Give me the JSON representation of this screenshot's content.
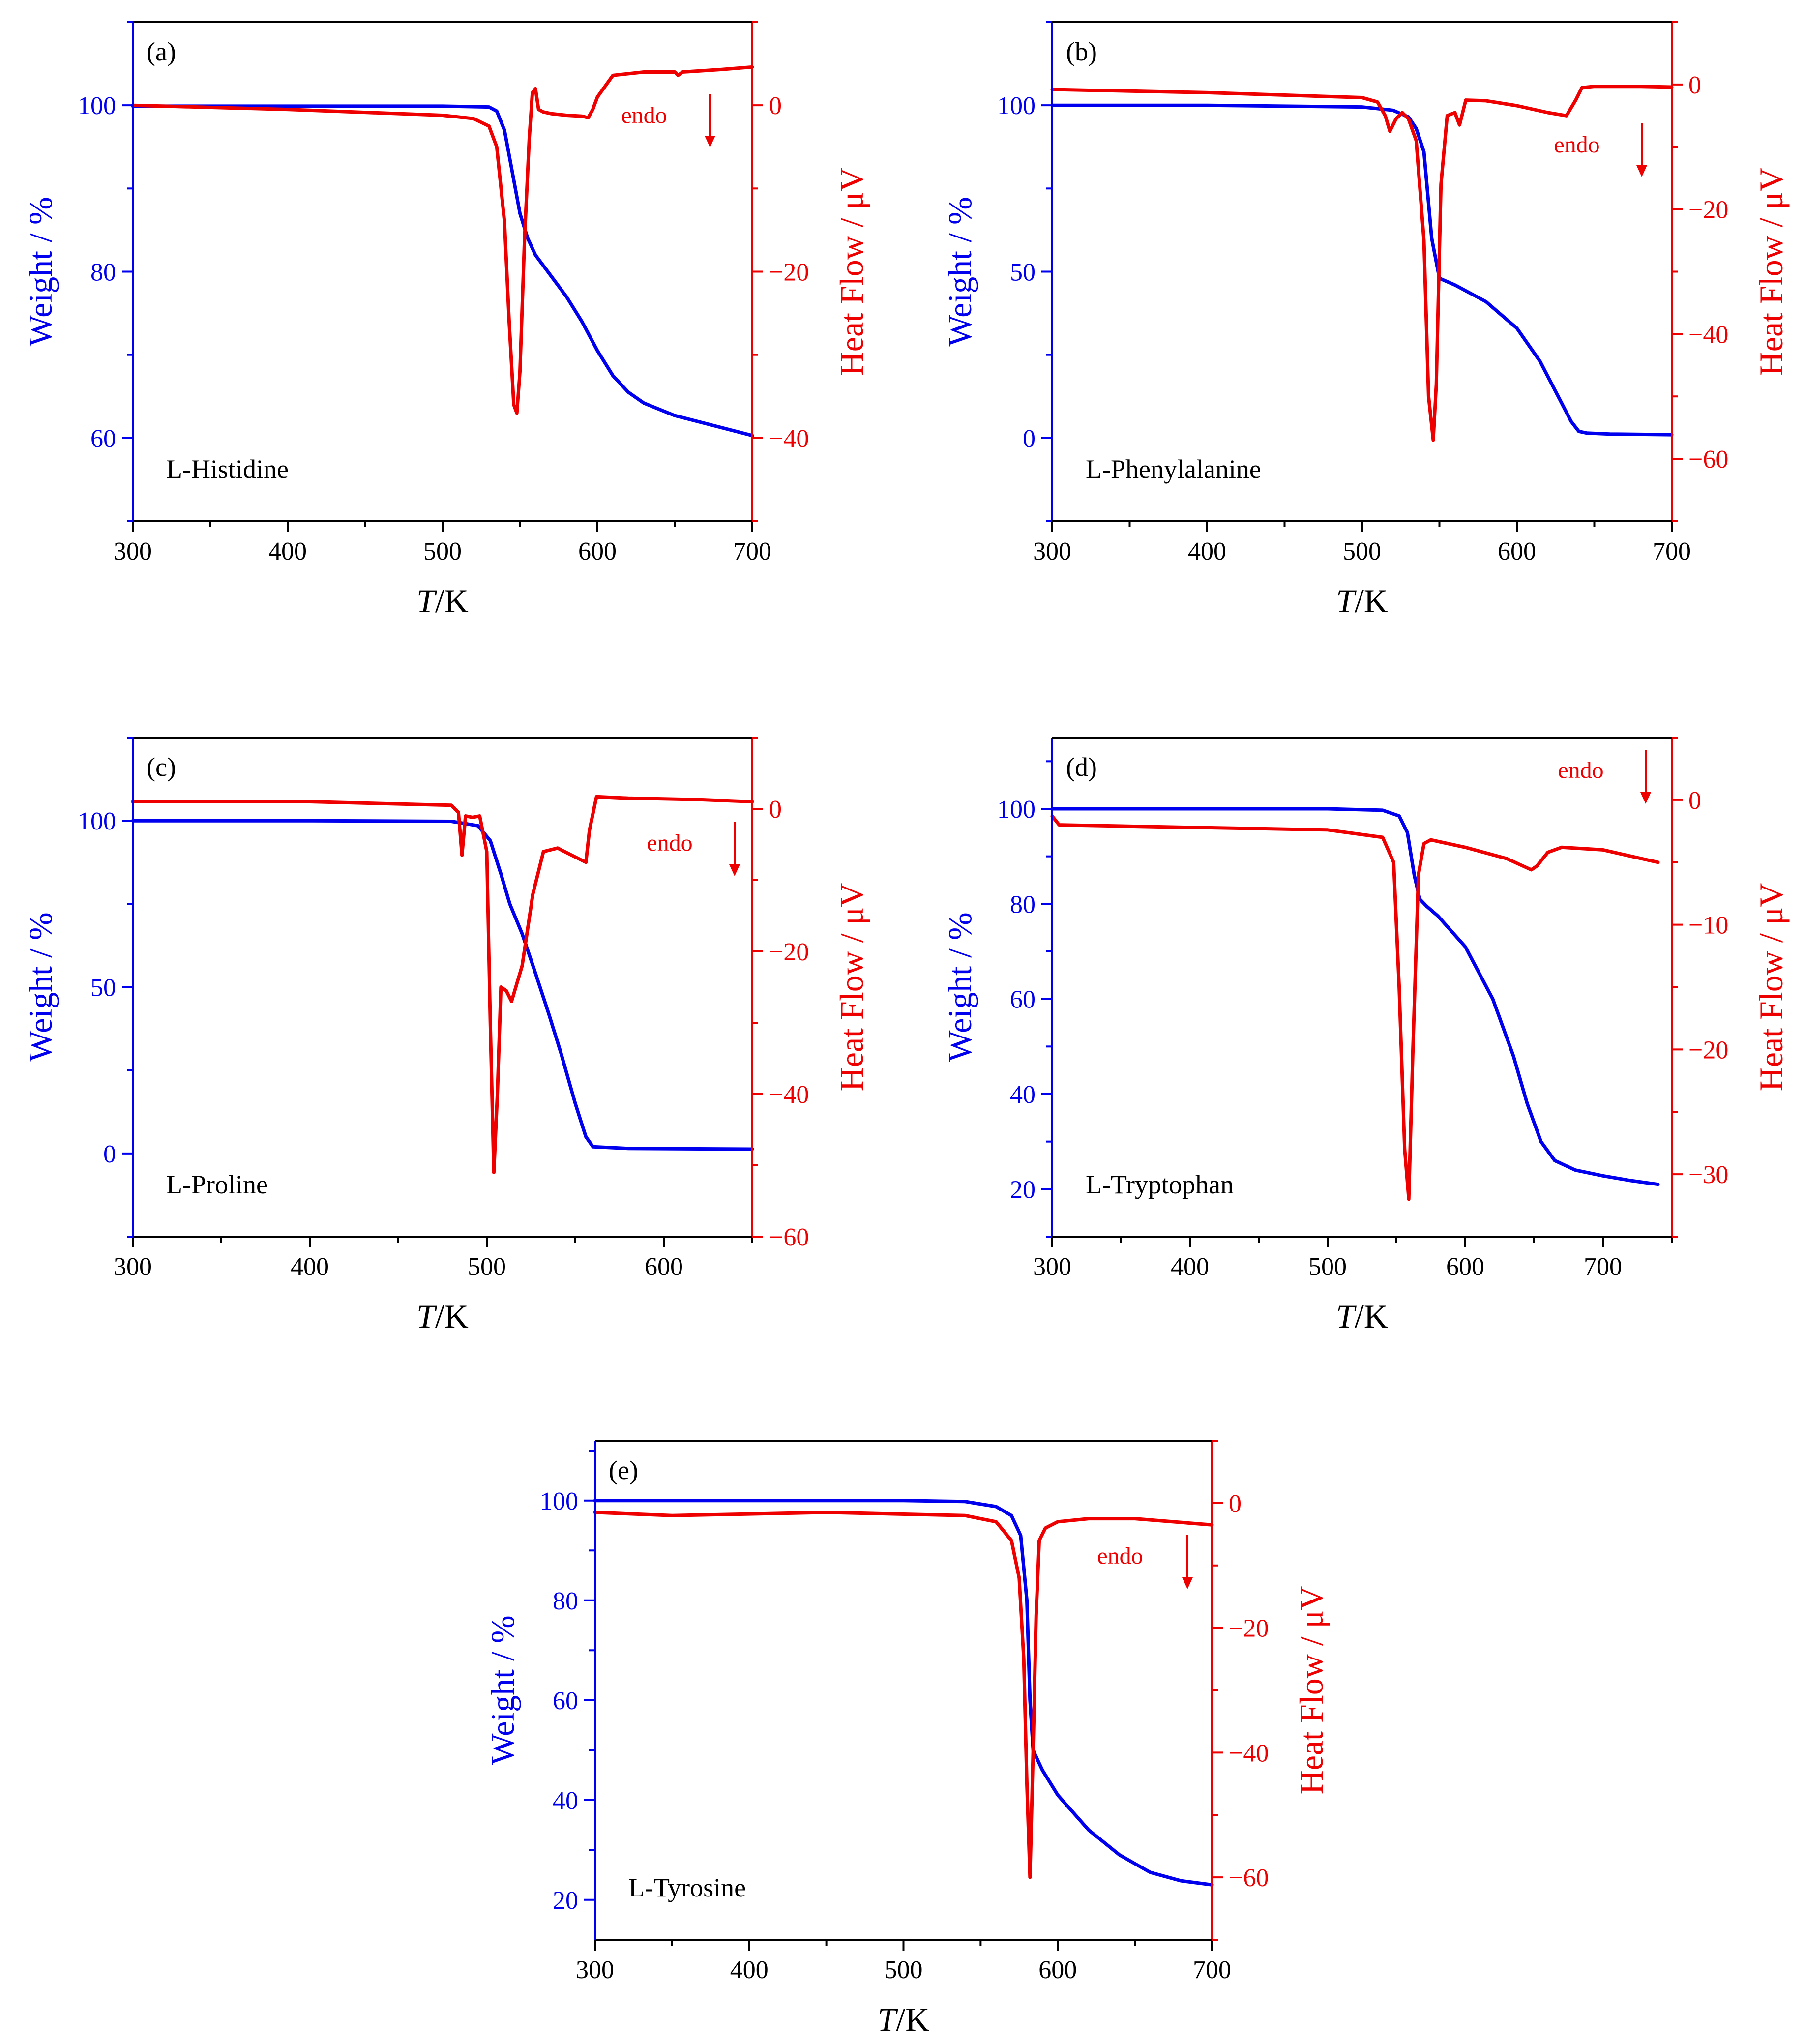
{
  "colors": {
    "weight": "#0000ee",
    "heat_flow": "#ee0000",
    "axis": "#000000"
  },
  "chart_data": [
    {
      "type": "line",
      "panel": "(a)",
      "title": "L-Histidine",
      "xlabel_italic": "T",
      "xlabel_unit": "/K",
      "ylabel": "Weight / %",
      "y2label": "Heat Flow / μV",
      "annotation": "endo",
      "xlim": [
        300,
        700
      ],
      "ylim": [
        50,
        110
      ],
      "y2lim": [
        -50,
        10
      ],
      "xticks": [
        "300",
        "400",
        "500",
        "600",
        "700"
      ],
      "yticks": [
        "60",
        "80",
        "100"
      ],
      "y2ticks": [
        "−40",
        "−20",
        "0"
      ],
      "series": [
        {
          "name": "Weight",
          "axis": "left",
          "color": "#0000ee",
          "x": [
            300,
            400,
            500,
            530,
            535,
            540,
            545,
            550,
            555,
            560,
            570,
            580,
            590,
            600,
            610,
            620,
            630,
            650,
            675,
            700
          ],
          "y": [
            99.9,
            99.9,
            99.9,
            99.8,
            99.3,
            97.0,
            92.0,
            87.0,
            84.0,
            82.0,
            79.5,
            77.0,
            74.0,
            70.5,
            67.5,
            65.5,
            64.2,
            62.7,
            61.5,
            60.3
          ]
        },
        {
          "name": "Heat Flow",
          "axis": "right",
          "color": "#ee0000",
          "x": [
            300,
            400,
            500,
            520,
            530,
            535,
            540,
            543,
            546,
            548,
            550,
            553,
            556,
            558,
            560,
            562,
            565,
            570,
            580,
            590,
            594,
            597,
            600,
            610,
            630,
            650,
            652,
            655,
            680,
            700
          ],
          "y": [
            0,
            -0.5,
            -1.2,
            -1.6,
            -2.5,
            -5,
            -14,
            -26,
            -36,
            -37,
            -32,
            -16,
            -4,
            1.5,
            2,
            -0.5,
            -0.8,
            -1,
            -1.2,
            -1.3,
            -1.5,
            -0.5,
            1,
            3.6,
            4,
            4,
            3.6,
            4,
            4.3,
            4.6
          ]
        }
      ]
    },
    {
      "type": "line",
      "panel": "(b)",
      "title": "L-Phenylalanine",
      "xlabel_italic": "T",
      "xlabel_unit": "/K",
      "ylabel": "Weight / %",
      "y2label": "Heat Flow / μV",
      "annotation": "endo",
      "xlim": [
        300,
        700
      ],
      "ylim": [
        -25,
        125
      ],
      "y2lim": [
        -70,
        10
      ],
      "xticks": [
        "300",
        "400",
        "500",
        "600",
        "700"
      ],
      "yticks": [
        "0",
        "50",
        "100"
      ],
      "y2ticks": [
        "−60",
        "−40",
        "−20",
        "0"
      ],
      "series": [
        {
          "name": "Weight",
          "axis": "left",
          "color": "#0000ee",
          "x": [
            300,
            400,
            500,
            520,
            530,
            535,
            540,
            545,
            550,
            560,
            580,
            600,
            615,
            625,
            635,
            640,
            645,
            660,
            700
          ],
          "y": [
            100,
            100,
            99.5,
            98.5,
            96.5,
            93.0,
            86.0,
            60.0,
            48.0,
            46.0,
            41.0,
            33.0,
            23.0,
            14.0,
            5.0,
            2.0,
            1.5,
            1.2,
            1.0
          ]
        },
        {
          "name": "Heat Flow",
          "axis": "right",
          "color": "#ee0000",
          "x": [
            300,
            400,
            500,
            510,
            515,
            518,
            522,
            526,
            530,
            535,
            540,
            543,
            546,
            548,
            551,
            555,
            560,
            563,
            567,
            580,
            600,
            620,
            632,
            638,
            642,
            650,
            680,
            700
          ],
          "y": [
            -0.8,
            -1.3,
            -2.1,
            -2.8,
            -5,
            -7.5,
            -5.5,
            -4.5,
            -5.5,
            -9,
            -25,
            -50,
            -57,
            -48,
            -16,
            -5,
            -4.5,
            -6.5,
            -2.5,
            -2.6,
            -3.4,
            -4.5,
            -5,
            -2.5,
            -0.5,
            -0.3,
            -0.3,
            -0.4
          ]
        }
      ]
    },
    {
      "type": "line",
      "panel": "(c)",
      "title": "L-Proline",
      "xlabel_italic": "T",
      "xlabel_unit": "/K",
      "ylabel": "Weight / %",
      "y2label": "Heat Flow / μV",
      "annotation": "endo",
      "xlim": [
        300,
        650
      ],
      "ylim": [
        -25,
        125
      ],
      "y2lim": [
        -60,
        10
      ],
      "xticks": [
        "300",
        "400",
        "500",
        "600"
      ],
      "yticks": [
        "0",
        "50",
        "100"
      ],
      "y2ticks": [
        "−60",
        "−40",
        "−20",
        "0"
      ],
      "series": [
        {
          "name": "Weight",
          "axis": "left",
          "color": "#0000ee",
          "x": [
            300,
            400,
            480,
            495,
            502,
            508,
            513,
            520,
            527,
            535,
            542,
            550,
            556,
            560,
            580,
            650
          ],
          "y": [
            100,
            100,
            99.8,
            98.5,
            94.0,
            84.0,
            75.0,
            66.0,
            55.0,
            42.0,
            30.0,
            15.0,
            5.0,
            2.0,
            1.5,
            1.3
          ]
        },
        {
          "name": "Heat Flow",
          "axis": "right",
          "color": "#ee0000",
          "x": [
            300,
            400,
            480,
            484,
            486,
            488,
            492,
            496,
            500,
            502,
            504,
            506,
            508,
            511,
            514,
            520,
            526,
            532,
            540,
            548,
            556,
            558,
            562,
            580,
            620,
            650
          ],
          "y": [
            1,
            1,
            0.5,
            -0.5,
            -6.5,
            -1,
            -1.2,
            -1,
            -6,
            -30,
            -51,
            -40,
            -25,
            -25.5,
            -27,
            -22,
            -12,
            -6,
            -5.5,
            -6.5,
            -7.5,
            -3,
            1.7,
            1.5,
            1.3,
            1
          ]
        }
      ]
    },
    {
      "type": "line",
      "panel": "(d)",
      "title": "L-Tryptophan",
      "xlabel_italic": "T",
      "xlabel_unit": "/K",
      "ylabel": "Weight / %",
      "y2label": "Heat Flow / μV",
      "annotation": "endo",
      "xlim": [
        300,
        750
      ],
      "ylim": [
        10,
        115
      ],
      "y2lim": [
        -35,
        5
      ],
      "xticks": [
        "300",
        "400",
        "500",
        "600",
        "700"
      ],
      "yticks": [
        "20",
        "40",
        "60",
        "80",
        "100"
      ],
      "y2ticks": [
        "−30",
        "−20",
        "−10",
        "0"
      ],
      "series": [
        {
          "name": "Weight",
          "axis": "left",
          "color": "#0000ee",
          "x": [
            300,
            400,
            500,
            540,
            552,
            558,
            563,
            567,
            572,
            580,
            600,
            620,
            635,
            645,
            655,
            665,
            680,
            700,
            720,
            740
          ],
          "y": [
            100,
            100,
            100,
            99.7,
            98.5,
            95.0,
            86.0,
            81.0,
            79.5,
            77.5,
            71.0,
            60.0,
            48.0,
            38.0,
            30.0,
            26.0,
            24.0,
            22.8,
            21.8,
            21.0
          ]
        },
        {
          "name": "Heat Flow",
          "axis": "right",
          "color": "#ee0000",
          "x": [
            300,
            305,
            400,
            500,
            540,
            548,
            552,
            556,
            559,
            562,
            566,
            570,
            575,
            600,
            630,
            648,
            652,
            660,
            670,
            700,
            740
          ],
          "y": [
            -1.3,
            -2,
            -2.2,
            -2.4,
            -3,
            -5,
            -15,
            -28,
            -32,
            -20,
            -6,
            -3.5,
            -3.2,
            -3.8,
            -4.7,
            -5.6,
            -5.3,
            -4.2,
            -3.8,
            -4,
            -5
          ]
        }
      ]
    },
    {
      "type": "line",
      "panel": "(e)",
      "title": "L-Tyrosine",
      "xlabel_italic": "T",
      "xlabel_unit": "/K",
      "ylabel": "Weight / %",
      "y2label": "Heat Flow / μV",
      "annotation": "endo",
      "xlim": [
        300,
        700
      ],
      "ylim": [
        12,
        112
      ],
      "y2lim": [
        -70,
        10
      ],
      "xticks": [
        "300",
        "400",
        "500",
        "600",
        "700"
      ],
      "yticks": [
        "20",
        "40",
        "60",
        "80",
        "100"
      ],
      "y2ticks": [
        "−60",
        "−40",
        "−20",
        "0"
      ],
      "series": [
        {
          "name": "Weight",
          "axis": "left",
          "color": "#0000ee",
          "x": [
            300,
            400,
            500,
            540,
            560,
            570,
            576,
            580,
            582,
            584,
            590,
            600,
            620,
            640,
            660,
            680,
            700
          ],
          "y": [
            100,
            100,
            100,
            99.8,
            98.8,
            97.0,
            93.0,
            80.0,
            60.0,
            50.0,
            46.0,
            41.0,
            34.0,
            29.0,
            25.5,
            23.8,
            23.0
          ]
        },
        {
          "name": "Heat Flow",
          "axis": "right",
          "color": "#ee0000",
          "x": [
            300,
            350,
            450,
            540,
            560,
            570,
            575,
            578,
            580,
            582,
            584,
            586,
            588,
            592,
            600,
            620,
            650,
            700
          ],
          "y": [
            -1.5,
            -2,
            -1.5,
            -2,
            -3,
            -6,
            -12,
            -25,
            -45,
            -60,
            -40,
            -18,
            -6,
            -4,
            -3,
            -2.5,
            -2.5,
            -3.5
          ]
        }
      ]
    }
  ]
}
